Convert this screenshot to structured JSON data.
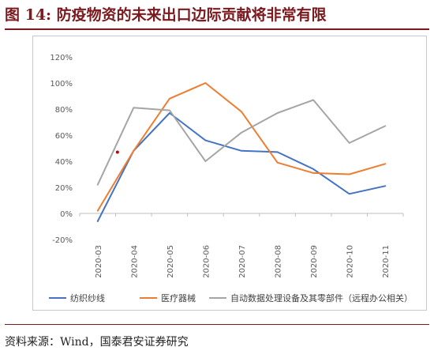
{
  "figure": {
    "title": "图 14: 防疫物资的未来出口边际贡献将非常有限",
    "source": "资料来源：Wind，国泰君安证券研究"
  },
  "chart_data": {
    "type": "line",
    "categories": [
      "2020-03",
      "2020-04",
      "2020-05",
      "2020-06",
      "2020-07",
      "2020-08",
      "2020-09",
      "2020-10",
      "2020-11"
    ],
    "ylim": [
      -20,
      120
    ],
    "yticks": [
      -20,
      0,
      20,
      40,
      60,
      80,
      100,
      120
    ],
    "y_tick_labels": [
      "-20%",
      "0%",
      "20%",
      "40%",
      "60%",
      "80%",
      "100%",
      "120%"
    ],
    "ylabel": "",
    "xlabel": "",
    "grid": false,
    "legend_position": "bottom",
    "series": [
      {
        "name": "纺织纱线",
        "color": "#4472C4",
        "values": [
          -6,
          48,
          77,
          56,
          48,
          47,
          34,
          15,
          21
        ]
      },
      {
        "name": "医疗器械",
        "color": "#ED7D31",
        "values": [
          2,
          48,
          88,
          100,
          78,
          39,
          31,
          30,
          38
        ]
      },
      {
        "name": "自动数据处理设备及其零部件（远程办公相关）",
        "color": "#A5A5A5",
        "values": [
          22,
          81,
          79,
          40,
          62,
          77,
          87,
          54,
          67
        ]
      }
    ],
    "annotations": [
      {
        "type": "point",
        "x": 0.55,
        "y": 47,
        "color": "#C00000"
      }
    ]
  }
}
